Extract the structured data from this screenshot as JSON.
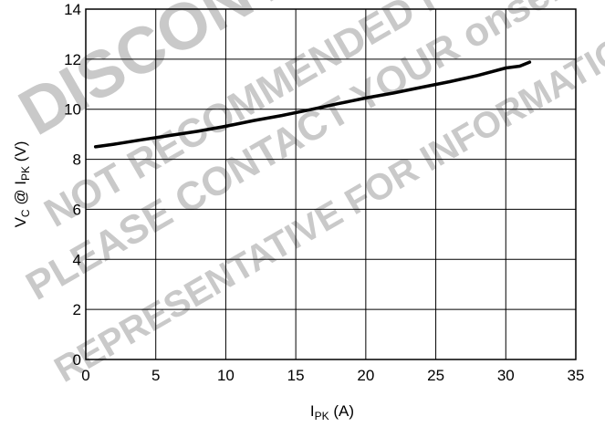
{
  "chart_data": {
    "type": "line",
    "title": "",
    "xlabel": {
      "main": "I",
      "sub": "PK",
      "tail": " (A)"
    },
    "ylabel": {
      "v": "V",
      "c_sub": "C",
      "at": " @ I",
      "pk_sub": "PK",
      "tail": " (V)"
    },
    "xlim": [
      0,
      35
    ],
    "ylim": [
      0,
      14
    ],
    "x_ticks": [
      0,
      5,
      10,
      15,
      20,
      25,
      30,
      35
    ],
    "y_ticks": [
      0,
      2,
      4,
      6,
      8,
      10,
      12,
      14
    ],
    "grid": true,
    "series": [
      {
        "x": [
          0.7,
          2,
          4,
          6,
          8,
          10,
          12,
          14,
          16,
          18,
          20,
          22,
          24,
          26,
          28,
          30,
          31,
          31.7
        ],
        "y": [
          8.5,
          8.6,
          8.78,
          8.95,
          9.12,
          9.32,
          9.55,
          9.75,
          9.98,
          10.22,
          10.45,
          10.65,
          10.88,
          11.1,
          11.35,
          11.65,
          11.72,
          11.88
        ]
      }
    ]
  },
  "watermark": {
    "lines": [
      "DISCONTINUED",
      "NOT RECOMMENDED FOR NEW DESIGN",
      "PLEASE CONTACT YOUR onsemi",
      "REPRESENTATIVE FOR INFORMATION"
    ]
  }
}
